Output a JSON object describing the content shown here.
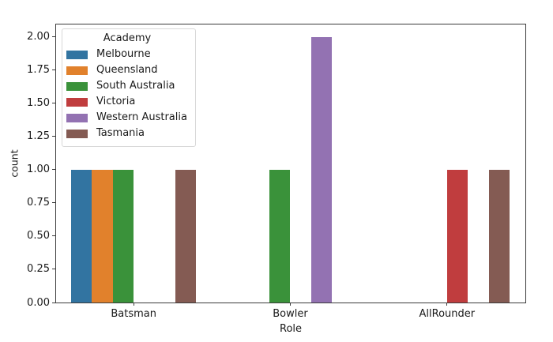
{
  "chart_data": {
    "type": "bar",
    "title": "",
    "xlabel": "Role",
    "ylabel": "count",
    "categories": [
      "Batsman",
      "Bowler",
      "AllRounder"
    ],
    "series": [
      {
        "name": "Melbourne",
        "color": "#3274a1",
        "values": [
          1,
          0,
          0
        ]
      },
      {
        "name": "Queensland",
        "color": "#e1812c",
        "values": [
          1,
          0,
          0
        ]
      },
      {
        "name": "South Australia",
        "color": "#3a923a",
        "values": [
          1,
          1,
          0
        ]
      },
      {
        "name": "Victoria",
        "color": "#c03d3e",
        "values": [
          0,
          0,
          1
        ]
      },
      {
        "name": "Western Australia",
        "color": "#9372b2",
        "values": [
          0,
          2,
          0
        ]
      },
      {
        "name": "Tasmania",
        "color": "#845b53",
        "values": [
          1,
          0,
          1
        ]
      }
    ],
    "legend_title": "Academy",
    "legend_position": "upper left",
    "ylim": [
      0,
      2.1
    ],
    "yticks": [
      "0.00",
      "0.25",
      "0.50",
      "0.75",
      "1.00",
      "1.25",
      "1.50",
      "1.75",
      "2.00"
    ],
    "bar_group_fraction": 0.8,
    "grid": false,
    "spine_color": "#3b3b3b",
    "background_color": "#ffffff"
  }
}
